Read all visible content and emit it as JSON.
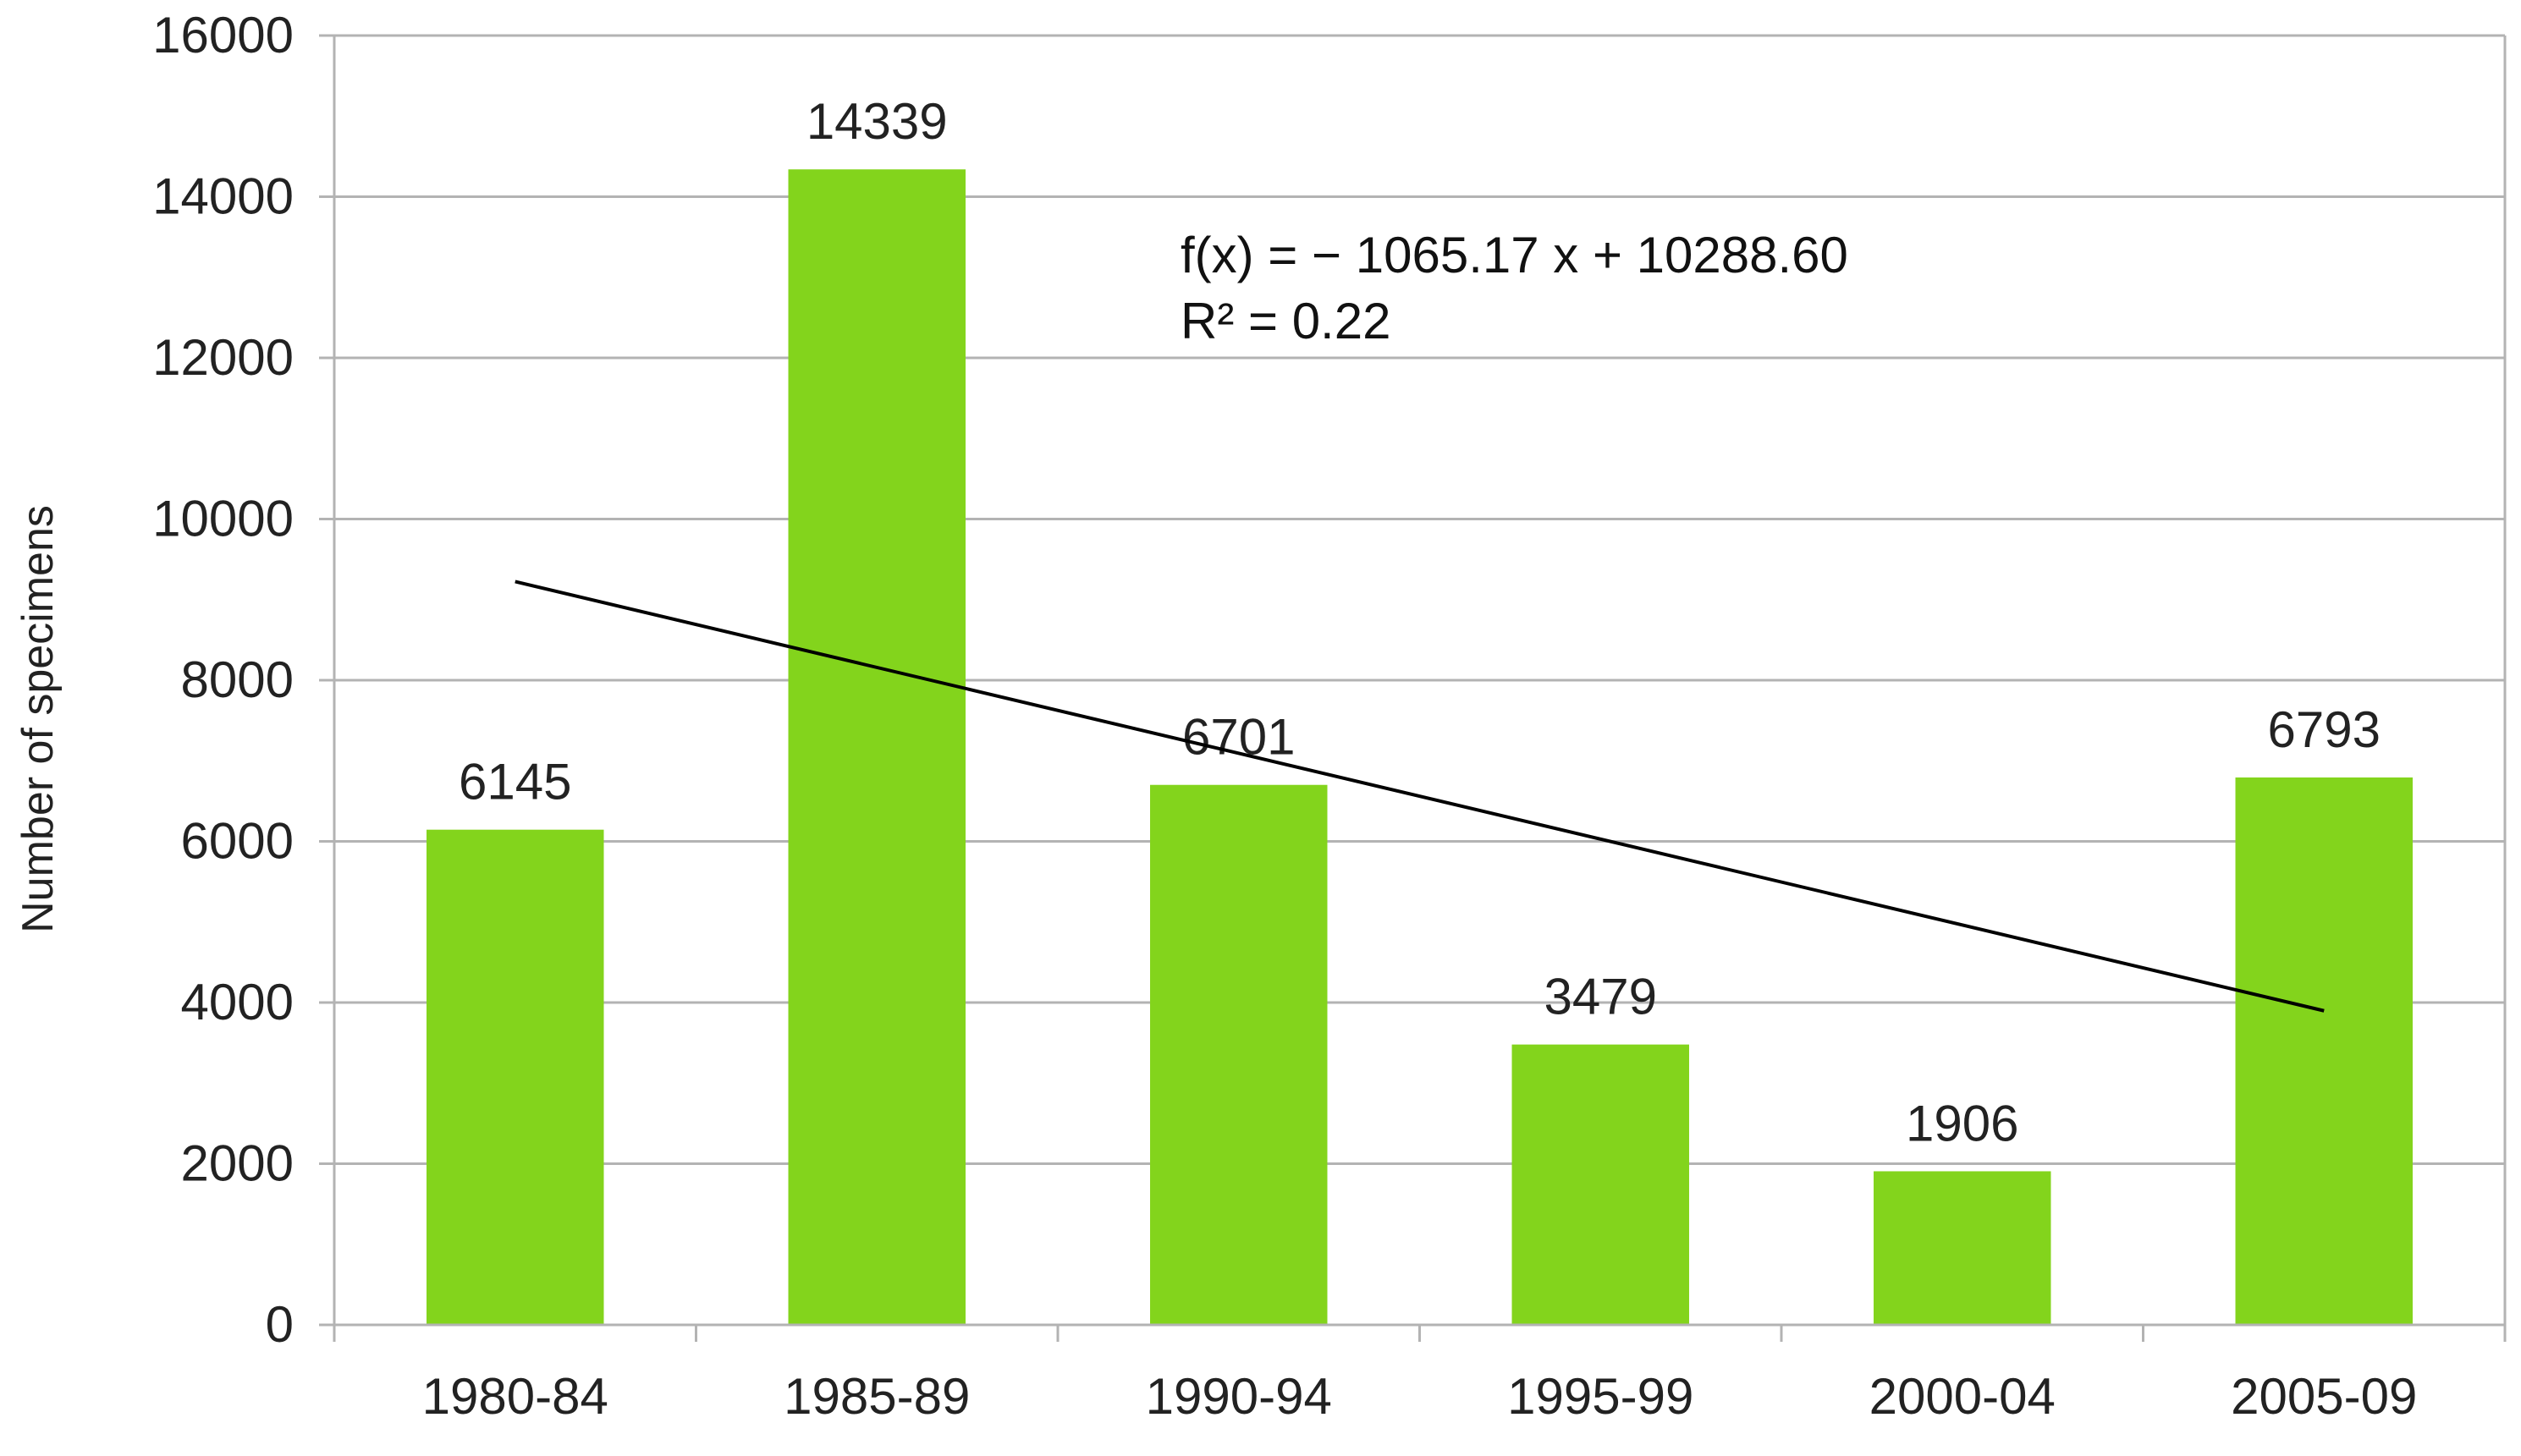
{
  "chart_data": {
    "type": "bar",
    "title": "",
    "xlabel": "",
    "ylabel": "Number of specimens",
    "categories": [
      "1980-84",
      "1985-89",
      "1990-94",
      "1995-99",
      "2000-04",
      "2005-09"
    ],
    "series": [
      {
        "values": [
          6145,
          14339,
          6701,
          3479,
          1906,
          6793
        ],
        "color": "#83d41c"
      }
    ],
    "data_labels": [
      "6145",
      "14339",
      "6701",
      "3479",
      "1906",
      "6793"
    ],
    "ylim": [
      0,
      16000
    ],
    "yticks": [
      0,
      2000,
      4000,
      6000,
      8000,
      10000,
      12000,
      14000,
      16000
    ],
    "ytick_labels": [
      "0",
      "2000",
      "4000",
      "6000",
      "8000",
      "10000",
      "12000",
      "14000",
      "16000"
    ],
    "grid": true,
    "legend": "none",
    "trendline": {
      "type": "linear",
      "slope": -1065.17,
      "intercept": 10288.6,
      "color": "#000000",
      "equation_label": "f(x) = − 1065.17 x + 10288.60",
      "r2_label": "R² = 0.22"
    }
  }
}
